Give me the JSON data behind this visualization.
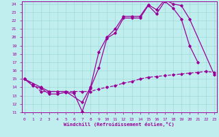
{
  "title": "",
  "xlabel": "Windchill (Refroidissement éolien,°C)",
  "bg_color": "#c0eeee",
  "line_color": "#990099",
  "xmin": 0,
  "xmax": 23,
  "ymin": 11,
  "ymax": 24,
  "series1_x": [
    0,
    1,
    2,
    3,
    4,
    5,
    6,
    7,
    8,
    9,
    10,
    11,
    12,
    13,
    14,
    15,
    16,
    17,
    18,
    19,
    20,
    21
  ],
  "series1_y": [
    15.0,
    14.2,
    13.9,
    13.2,
    13.2,
    13.4,
    13.3,
    11.1,
    13.9,
    16.3,
    19.9,
    20.5,
    22.3,
    22.3,
    22.3,
    23.8,
    22.8,
    24.3,
    23.5,
    22.2,
    19.0,
    17.0
  ],
  "series2_x": [
    0,
    2,
    3,
    4,
    5,
    7,
    8,
    9,
    10,
    11,
    12,
    13,
    14,
    15,
    16,
    17,
    18,
    19,
    20,
    23
  ],
  "series2_y": [
    15.0,
    14.0,
    13.5,
    13.5,
    13.5,
    12.2,
    14.0,
    18.2,
    20.0,
    21.0,
    22.5,
    22.5,
    22.5,
    23.9,
    23.3,
    24.5,
    24.0,
    23.8,
    22.2,
    15.5
  ],
  "series3_x": [
    0,
    1,
    2,
    3,
    4,
    5,
    6,
    7,
    8,
    9,
    10,
    11,
    12,
    13,
    14,
    15,
    16,
    17,
    18,
    19,
    20,
    21,
    22,
    23
  ],
  "series3_y": [
    15.0,
    14.4,
    13.5,
    13.5,
    13.5,
    13.5,
    13.5,
    13.5,
    13.5,
    13.8,
    14.0,
    14.2,
    14.5,
    14.7,
    15.0,
    15.2,
    15.3,
    15.4,
    15.5,
    15.6,
    15.7,
    15.8,
    15.9,
    15.8
  ]
}
